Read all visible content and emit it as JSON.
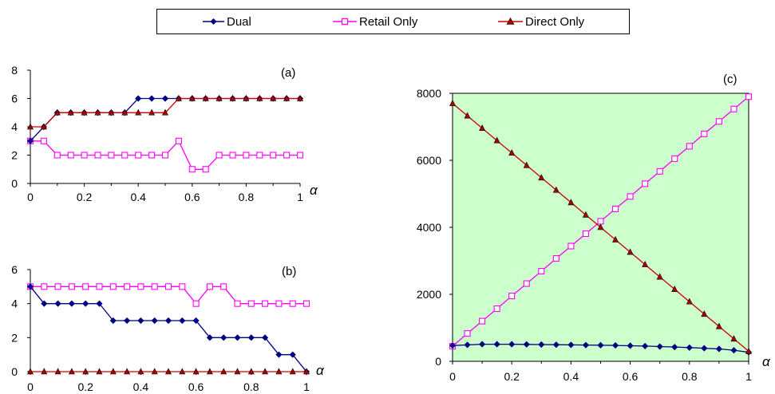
{
  "legend": {
    "dual": "Dual",
    "retail": "Retail Only",
    "direct": "Direct Only"
  },
  "colors": {
    "dual": "#000080",
    "retail": "#ff00ff",
    "direct": "#cc0000",
    "direct_marker": "#aa0000",
    "plot_c_bg": "#ccffcc"
  },
  "chart_data": [
    {
      "type": "line",
      "panel_label": "(a)",
      "xlabel": "α",
      "xlim": [
        0,
        1
      ],
      "ylim": [
        0,
        8
      ],
      "x_ticks": [
        "0",
        "0.2",
        "0.4",
        "0.6",
        "0.8",
        "1"
      ],
      "y_ticks": [
        "0",
        "2",
        "4",
        "6",
        "8"
      ],
      "x": [
        0,
        0.05,
        0.1,
        0.15,
        0.2,
        0.25,
        0.3,
        0.35,
        0.4,
        0.45,
        0.5,
        0.55,
        0.6,
        0.65,
        0.7,
        0.75,
        0.8,
        0.85,
        0.9,
        0.95,
        1.0
      ],
      "series": [
        {
          "name": "Dual",
          "values": [
            3,
            4,
            5,
            5,
            5,
            5,
            5,
            5,
            6,
            6,
            6,
            6,
            6,
            6,
            6,
            6,
            6,
            6,
            6,
            6,
            6
          ]
        },
        {
          "name": "Retail Only",
          "values": [
            3,
            3,
            2,
            2,
            2,
            2,
            2,
            2,
            2,
            2,
            2,
            3,
            1,
            1,
            2,
            2,
            2,
            2,
            2,
            2,
            2
          ]
        },
        {
          "name": "Direct Only",
          "values": [
            4,
            4,
            5,
            5,
            5,
            5,
            5,
            5,
            5,
            5,
            5,
            6,
            6,
            6,
            6,
            6,
            6,
            6,
            6,
            6,
            6
          ]
        }
      ]
    },
    {
      "type": "line",
      "panel_label": "(b)",
      "xlabel": "α",
      "xlim": [
        0,
        1
      ],
      "ylim": [
        0,
        6
      ],
      "x_ticks": [
        "0",
        "0.2",
        "0.4",
        "0.6",
        "0.8",
        "1"
      ],
      "y_ticks": [
        "0",
        "2",
        "4",
        "6"
      ],
      "x": [
        0,
        0.05,
        0.1,
        0.15,
        0.2,
        0.25,
        0.3,
        0.35,
        0.4,
        0.45,
        0.5,
        0.55,
        0.6,
        0.65,
        0.7,
        0.75,
        0.8,
        0.85,
        0.9,
        0.95,
        1.0
      ],
      "series": [
        {
          "name": "Dual",
          "values": [
            5,
            4,
            4,
            4,
            4,
            4,
            3,
            3,
            3,
            3,
            3,
            3,
            3,
            2,
            2,
            2,
            2,
            2,
            1,
            1,
            0
          ]
        },
        {
          "name": "Retail Only",
          "values": [
            5,
            5,
            5,
            5,
            5,
            5,
            5,
            5,
            5,
            5,
            5,
            5,
            4,
            5,
            5,
            4,
            4,
            4,
            4,
            4,
            4
          ]
        },
        {
          "name": "Direct Only",
          "values": [
            0,
            0,
            0,
            0,
            0,
            0,
            0,
            0,
            0,
            0,
            0,
            0,
            0,
            0,
            0,
            0,
            0,
            0,
            0,
            0,
            0
          ]
        }
      ]
    },
    {
      "type": "line",
      "panel_label": "(c)",
      "xlabel": "α",
      "xlim": [
        0,
        1
      ],
      "ylim": [
        0,
        8000
      ],
      "x_ticks": [
        "0",
        "0.2",
        "0.4",
        "0.6",
        "0.8",
        "1"
      ],
      "y_ticks": [
        "0",
        "2000",
        "4000",
        "6000",
        "8000"
      ],
      "background": "#ccffcc",
      "x": [
        0,
        0.05,
        0.1,
        0.15,
        0.2,
        0.25,
        0.3,
        0.35,
        0.4,
        0.45,
        0.5,
        0.55,
        0.6,
        0.65,
        0.7,
        0.75,
        0.8,
        0.85,
        0.9,
        0.95,
        1.0
      ],
      "series": [
        {
          "name": "Dual",
          "values": [
            470,
            490,
            510,
            510,
            510,
            505,
            500,
            495,
            490,
            485,
            480,
            475,
            465,
            455,
            440,
            425,
            410,
            390,
            370,
            330,
            270
          ]
        },
        {
          "name": "Retail Only",
          "values": [
            450,
            830,
            1200,
            1570,
            1950,
            2320,
            2690,
            3070,
            3440,
            3810,
            4180,
            4550,
            4920,
            5300,
            5670,
            6050,
            6420,
            6790,
            7160,
            7530,
            7900
          ]
        },
        {
          "name": "Direct Only",
          "values": [
            7700,
            7330,
            6960,
            6590,
            6220,
            5850,
            5480,
            5110,
            4740,
            4370,
            4000,
            3630,
            3260,
            2890,
            2520,
            2150,
            1780,
            1410,
            1040,
            670,
            300
          ]
        }
      ]
    }
  ]
}
